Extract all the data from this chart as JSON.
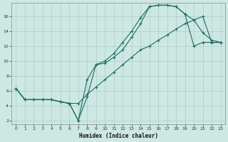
{
  "xlabel": "Humidex (Indice chaleur)",
  "bg_color": "#cde8e2",
  "grid_color": "#aacdc7",
  "line_color": "#1a6e62",
  "xlim": [
    -0.5,
    23.5
  ],
  "ylim": [
    1.5,
    17.8
  ],
  "xticks": [
    0,
    1,
    2,
    3,
    4,
    5,
    6,
    7,
    8,
    9,
    10,
    11,
    12,
    13,
    14,
    15,
    16,
    17,
    18,
    19,
    20,
    21,
    22,
    23
  ],
  "yticks": [
    2,
    4,
    6,
    8,
    10,
    12,
    14,
    16
  ],
  "line1_x": [
    0,
    1,
    2,
    3,
    4,
    5,
    6,
    7,
    8,
    9,
    10,
    11,
    12,
    13,
    14,
    15,
    16,
    17,
    18,
    19,
    20,
    21,
    22,
    23
  ],
  "line1_y": [
    6.3,
    4.8,
    4.8,
    4.8,
    4.8,
    4.5,
    4.3,
    2.0,
    5.2,
    9.5,
    9.7,
    10.5,
    11.5,
    13.2,
    15.0,
    17.3,
    17.5,
    17.5,
    17.3,
    16.3,
    15.5,
    13.8,
    12.8,
    12.5
  ],
  "line2_x": [
    0,
    1,
    2,
    3,
    4,
    5,
    6,
    7,
    8,
    9,
    10,
    11,
    12,
    13,
    14,
    15,
    16,
    17,
    18,
    19,
    20,
    21,
    22,
    23
  ],
  "line2_y": [
    6.3,
    4.8,
    4.8,
    4.8,
    4.8,
    4.5,
    4.3,
    2.0,
    7.5,
    9.5,
    10.0,
    11.0,
    12.5,
    14.0,
    15.8,
    17.3,
    17.5,
    17.5,
    17.3,
    16.3,
    12.0,
    12.5,
    12.5,
    12.5
  ],
  "line3_x": [
    0,
    1,
    2,
    3,
    4,
    5,
    6,
    7,
    8,
    9,
    10,
    11,
    12,
    13,
    14,
    15,
    16,
    17,
    18,
    19,
    20,
    21,
    22,
    23
  ],
  "line3_y": [
    6.3,
    4.8,
    4.8,
    4.8,
    4.8,
    4.5,
    4.3,
    4.3,
    5.5,
    6.5,
    7.5,
    8.5,
    9.5,
    10.5,
    11.5,
    12.0,
    12.8,
    13.5,
    14.3,
    15.0,
    15.5,
    16.0,
    12.5,
    12.5
  ]
}
